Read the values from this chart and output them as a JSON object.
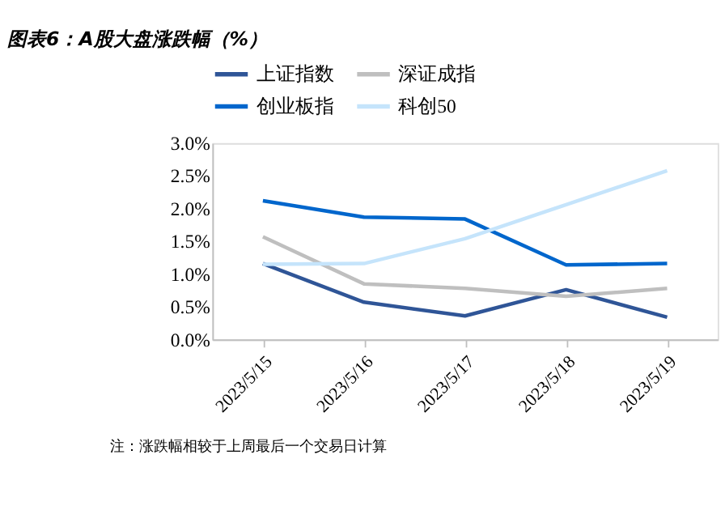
{
  "chart_data": {
    "type": "line",
    "title": "图表6：A股大盘涨跌幅（%）",
    "categories": [
      "2023/5/15",
      "2023/5/16",
      "2023/5/17",
      "2023/5/18",
      "2023/5/19"
    ],
    "series": [
      {
        "name": "上证指数",
        "color": "#2f5597",
        "values": [
          1.16,
          0.57,
          0.36,
          0.76,
          0.34
        ]
      },
      {
        "name": "深证成指",
        "color": "#bfbfbf",
        "values": [
          1.57,
          0.85,
          0.78,
          0.66,
          0.78
        ]
      },
      {
        "name": "创业板指",
        "color": "#0066cc",
        "values": [
          2.12,
          1.87,
          1.84,
          1.14,
          1.16
        ]
      },
      {
        "name": "科创50",
        "color": "#c5e4fb",
        "values": [
          1.15,
          1.16,
          1.54,
          2.06,
          2.58
        ]
      }
    ],
    "ylim": [
      0,
      3.0
    ],
    "yticks": [
      {
        "value": 0,
        "label": "0.0%"
      },
      {
        "value": 0.5,
        "label": "0.5%"
      },
      {
        "value": 1.0,
        "label": "1.0%"
      },
      {
        "value": 1.5,
        "label": "1.5%"
      },
      {
        "value": 2.0,
        "label": "2.0%"
      },
      {
        "value": 2.5,
        "label": "2.5%"
      },
      {
        "value": 3.0,
        "label": "3.0%"
      }
    ],
    "grid": false,
    "legend": "top",
    "marker": "none",
    "line_style": "solid",
    "annotations": [
      "注：涨跌幅相较于上周最后一个交易日计算"
    ]
  }
}
